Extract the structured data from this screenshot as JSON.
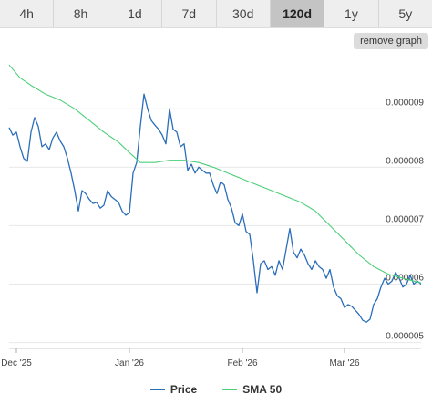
{
  "range_tabs": [
    {
      "label": "4h"
    },
    {
      "label": "8h"
    },
    {
      "label": "1d"
    },
    {
      "label": "7d"
    },
    {
      "label": "30d"
    },
    {
      "label": "120d",
      "active": true
    },
    {
      "label": "1y"
    },
    {
      "label": "5y"
    }
  ],
  "remove_graph_label": "remove graph",
  "colors": {
    "price": "#2a6ebb",
    "sma": "#4ccf7a",
    "grid": "#e8e8e8"
  },
  "chart_data": {
    "type": "line",
    "title": "",
    "xlabel": "",
    "ylabel": "",
    "x_ticks": [
      {
        "label": "Dec '25",
        "day": 2
      },
      {
        "label": "Jan '26",
        "day": 33
      },
      {
        "label": "Feb '26",
        "day": 64
      },
      {
        "label": "Mar '26",
        "day": 92
      }
    ],
    "y_ticks": [
      {
        "label": "0.000005",
        "value": 5e-06
      },
      {
        "label": "0.000006",
        "value": 6e-06
      },
      {
        "label": "0.000007",
        "value": 7e-06
      },
      {
        "label": "0.000008",
        "value": 8e-06
      },
      {
        "label": "0.000009",
        "value": 9e-06
      }
    ],
    "ylim": [
      4.9e-06,
      9.8e-06
    ],
    "xlim": [
      0,
      113
    ],
    "grid": true,
    "legend_position": "bottom",
    "series": [
      {
        "name": "Price",
        "points": [
          [
            0,
            8.68e-06
          ],
          [
            1,
            8.55e-06
          ],
          [
            2,
            8.6e-06
          ],
          [
            3,
            8.35e-06
          ],
          [
            4,
            8.15e-06
          ],
          [
            5,
            8.1e-06
          ],
          [
            6,
            8.6e-06
          ],
          [
            7,
            8.85e-06
          ],
          [
            8,
            8.7e-06
          ],
          [
            9,
            8.35e-06
          ],
          [
            10,
            8.4e-06
          ],
          [
            11,
            8.3e-06
          ],
          [
            12,
            8.5e-06
          ],
          [
            13,
            8.6e-06
          ],
          [
            14,
            8.45e-06
          ],
          [
            15,
            8.35e-06
          ],
          [
            16,
            8.15e-06
          ],
          [
            17,
            7.9e-06
          ],
          [
            18,
            7.6e-06
          ],
          [
            19,
            7.25e-06
          ],
          [
            20,
            7.6e-06
          ],
          [
            21,
            7.55e-06
          ],
          [
            22,
            7.45e-06
          ],
          [
            23,
            7.38e-06
          ],
          [
            24,
            7.4e-06
          ],
          [
            25,
            7.3e-06
          ],
          [
            26,
            7.35e-06
          ],
          [
            27,
            7.6e-06
          ],
          [
            28,
            7.5e-06
          ],
          [
            29,
            7.45e-06
          ],
          [
            30,
            7.4e-06
          ],
          [
            31,
            7.25e-06
          ],
          [
            32,
            7.18e-06
          ],
          [
            33,
            7.22e-06
          ],
          [
            34,
            7.9e-06
          ],
          [
            35,
            8.08e-06
          ],
          [
            36,
            8.7e-06
          ],
          [
            37,
            9.25e-06
          ],
          [
            38,
            9e-06
          ],
          [
            39,
            8.8e-06
          ],
          [
            40,
            8.72e-06
          ],
          [
            41,
            8.65e-06
          ],
          [
            42,
            8.55e-06
          ],
          [
            43,
            8.4e-06
          ],
          [
            44,
            9e-06
          ],
          [
            45,
            8.65e-06
          ],
          [
            46,
            8.6e-06
          ],
          [
            47,
            8.35e-06
          ],
          [
            48,
            8.4e-06
          ],
          [
            49,
            7.95e-06
          ],
          [
            50,
            8.05e-06
          ],
          [
            51,
            7.9e-06
          ],
          [
            52,
            8e-06
          ],
          [
            53,
            7.95e-06
          ],
          [
            54,
            7.9e-06
          ],
          [
            55,
            7.9e-06
          ],
          [
            56,
            7.7e-06
          ],
          [
            57,
            7.55e-06
          ],
          [
            58,
            7.75e-06
          ],
          [
            59,
            7.7e-06
          ],
          [
            60,
            7.45e-06
          ],
          [
            61,
            7.3e-06
          ],
          [
            62,
            7.05e-06
          ],
          [
            63,
            7e-06
          ],
          [
            64,
            7.2e-06
          ],
          [
            65,
            6.9e-06
          ],
          [
            66,
            6.85e-06
          ],
          [
            67,
            6.4e-06
          ],
          [
            68,
            5.85e-06
          ],
          [
            69,
            6.35e-06
          ],
          [
            70,
            6.4e-06
          ],
          [
            71,
            6.25e-06
          ],
          [
            72,
            6.3e-06
          ],
          [
            73,
            6.15e-06
          ],
          [
            74,
            6.4e-06
          ],
          [
            75,
            6.25e-06
          ],
          [
            76,
            6.6e-06
          ],
          [
            77,
            6.95e-06
          ],
          [
            78,
            6.55e-06
          ],
          [
            79,
            6.45e-06
          ],
          [
            80,
            6.6e-06
          ],
          [
            81,
            6.5e-06
          ],
          [
            82,
            6.35e-06
          ],
          [
            83,
            6.25e-06
          ],
          [
            84,
            6.4e-06
          ],
          [
            85,
            6.3e-06
          ],
          [
            86,
            6.25e-06
          ],
          [
            87,
            6.1e-06
          ],
          [
            88,
            6.25e-06
          ],
          [
            89,
            5.95e-06
          ],
          [
            90,
            5.8e-06
          ],
          [
            91,
            5.75e-06
          ],
          [
            92,
            5.6e-06
          ],
          [
            93,
            5.65e-06
          ],
          [
            94,
            5.62e-06
          ],
          [
            95,
            5.55e-06
          ],
          [
            96,
            5.48e-06
          ],
          [
            97,
            5.38e-06
          ],
          [
            98,
            5.35e-06
          ],
          [
            99,
            5.4e-06
          ],
          [
            100,
            5.65e-06
          ],
          [
            101,
            5.75e-06
          ],
          [
            102,
            5.95e-06
          ],
          [
            103,
            6.1e-06
          ],
          [
            104,
            6e-06
          ],
          [
            105,
            6.05e-06
          ],
          [
            106,
            6.2e-06
          ],
          [
            107,
            6.1e-06
          ],
          [
            108,
            5.95e-06
          ],
          [
            109,
            6e-06
          ],
          [
            110,
            6.15e-06
          ],
          [
            111,
            6e-06
          ],
          [
            112,
            6.05e-06
          ],
          [
            113,
            6e-06
          ]
        ]
      },
      {
        "name": "SMA 50",
        "points": [
          [
            0,
            9.75e-06
          ],
          [
            3,
            9.53e-06
          ],
          [
            6,
            9.4e-06
          ],
          [
            10,
            9.25e-06
          ],
          [
            14,
            9.15e-06
          ],
          [
            18,
            9e-06
          ],
          [
            22,
            8.8e-06
          ],
          [
            26,
            8.6e-06
          ],
          [
            30,
            8.43e-06
          ],
          [
            33,
            8.25e-06
          ],
          [
            36,
            8.08e-06
          ],
          [
            40,
            8.08e-06
          ],
          [
            44,
            8.12e-06
          ],
          [
            48,
            8.12e-06
          ],
          [
            52,
            8.08e-06
          ],
          [
            56,
            8e-06
          ],
          [
            60,
            7.9e-06
          ],
          [
            64,
            7.8e-06
          ],
          [
            68,
            7.7e-06
          ],
          [
            72,
            7.6e-06
          ],
          [
            76,
            7.5e-06
          ],
          [
            80,
            7.4e-06
          ],
          [
            84,
            7.25e-06
          ],
          [
            88,
            7e-06
          ],
          [
            92,
            6.75e-06
          ],
          [
            96,
            6.5e-06
          ],
          [
            100,
            6.3e-06
          ],
          [
            104,
            6.17e-06
          ],
          [
            108,
            6.1e-06
          ],
          [
            113,
            6.02e-06
          ]
        ]
      }
    ]
  }
}
